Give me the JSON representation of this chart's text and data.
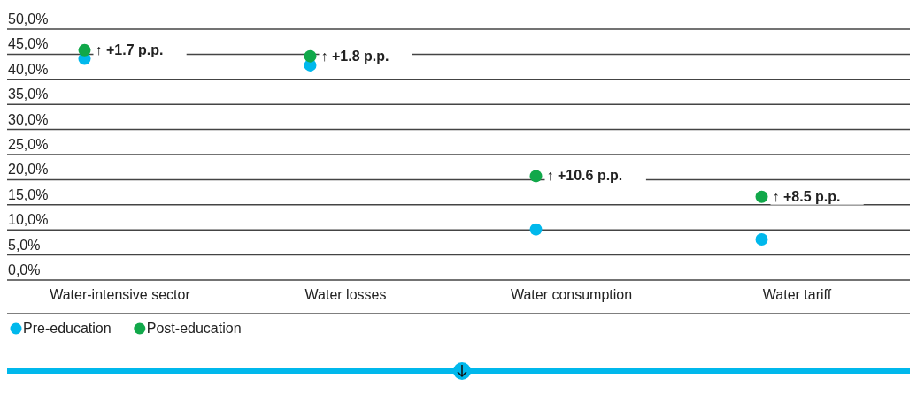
{
  "chart_data": {
    "type": "scatter",
    "categories": [
      "Water-intensive sector",
      "Water losses",
      "Water consumption",
      "Water tariff"
    ],
    "series": [
      {
        "name": "Pre-education",
        "color": "#00b8ec",
        "values": [
          44.1,
          42.8,
          10.1,
          8.1
        ]
      },
      {
        "name": "Post-education",
        "color": "#11a84a",
        "values": [
          45.8,
          44.6,
          20.7,
          16.6
        ]
      }
    ],
    "ylim": [
      0,
      50
    ],
    "yticks": [
      {
        "value": 0,
        "label": "0,0%"
      },
      {
        "value": 5,
        "label": "5,0%"
      },
      {
        "value": 10,
        "label": "10,0%"
      },
      {
        "value": 15,
        "label": "15,0%"
      },
      {
        "value": 20,
        "label": "20,0%"
      },
      {
        "value": 25,
        "label": "25,0%"
      },
      {
        "value": 30,
        "label": "30,0%"
      },
      {
        "value": 35,
        "label": "35,0%"
      },
      {
        "value": 40,
        "label": "40,0%"
      },
      {
        "value": 45,
        "label": "45,0%"
      },
      {
        "value": 50,
        "label": "50,0%"
      }
    ],
    "grid": "y",
    "marker": "circle",
    "legend": "bottom left",
    "annotations": [
      "↑ +1.7 p.p.",
      "↑ +1.8 p.p.",
      "↑ +10.6 p.p.",
      "↑ +8.5 p.p."
    ]
  }
}
